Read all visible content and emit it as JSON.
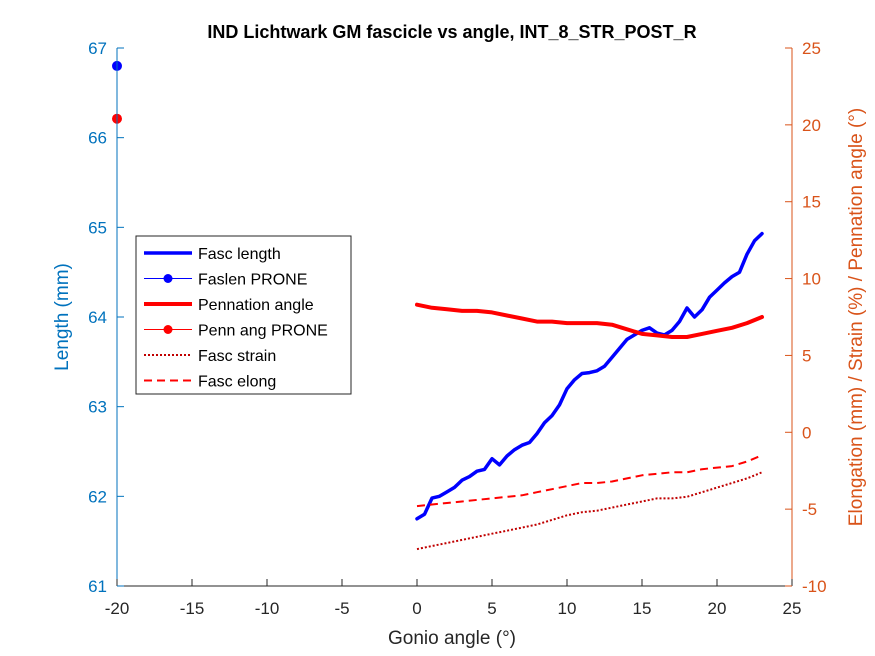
{
  "chart_data": {
    "type": "line",
    "title": "IND Lichtwark GM fascicle vs angle, INT_8_STR_POST_R",
    "xlabel": "Gonio angle (°)",
    "ylabel_left": "Length (mm)",
    "ylabel_right": "Elongation (mm) / Strain (%) / Pennation angle (°)",
    "xlim": [
      -20,
      25
    ],
    "ylim_left": [
      61,
      67
    ],
    "ylim_right": [
      -10,
      25
    ],
    "x_ticks": [
      -20,
      -15,
      -10,
      -5,
      0,
      5,
      10,
      15,
      20,
      25
    ],
    "y_left_ticks": [
      61,
      62,
      63,
      64,
      65,
      66,
      67
    ],
    "y_right_ticks": [
      -10,
      -5,
      0,
      5,
      10,
      15,
      20,
      25
    ],
    "grid": false,
    "legend_position": "middle-left",
    "colors": {
      "left_axis": "#0072BD",
      "right_axis": "#D95319",
      "fasc_length": "#0000FF",
      "pennation": "#FF0000",
      "strain": "#C00000",
      "elong": "#FF0000"
    },
    "series": [
      {
        "name": "Fasc length",
        "axis": "left",
        "style": "solid-thick",
        "x": [
          0,
          0.5,
          1,
          1.5,
          2,
          2.5,
          3,
          3.5,
          4,
          4.5,
          5,
          5.5,
          6,
          6.5,
          7,
          7.5,
          8,
          8.5,
          9,
          9.5,
          10,
          10.5,
          11,
          11.5,
          12,
          12.5,
          13,
          13.5,
          14,
          14.5,
          15,
          15.5,
          16,
          16.5,
          17,
          17.5,
          18,
          18.5,
          19,
          19.5,
          20,
          20.5,
          21,
          21.5,
          22,
          22.5,
          23
        ],
        "values": [
          61.75,
          61.8,
          61.98,
          62.0,
          62.05,
          62.1,
          62.18,
          62.22,
          62.28,
          62.3,
          62.42,
          62.35,
          62.45,
          62.52,
          62.57,
          62.6,
          62.7,
          62.82,
          62.9,
          63.02,
          63.2,
          63.3,
          63.37,
          63.38,
          63.4,
          63.45,
          63.55,
          63.65,
          63.75,
          63.8,
          63.85,
          63.88,
          63.82,
          63.8,
          63.85,
          63.95,
          64.1,
          64.0,
          64.08,
          64.22,
          64.3,
          64.38,
          64.45,
          64.5,
          64.7,
          64.85,
          64.93
        ]
      },
      {
        "name": "Faslen PRONE",
        "axis": "left",
        "style": "marker",
        "x": [
          -20
        ],
        "values": [
          66.8
        ]
      },
      {
        "name": "Pennation angle",
        "axis": "right",
        "style": "solid-thick",
        "x": [
          0,
          1,
          2,
          3,
          4,
          5,
          6,
          7,
          8,
          9,
          10,
          11,
          12,
          13,
          14,
          15,
          16,
          17,
          18,
          19,
          20,
          21,
          22,
          23
        ],
        "values": [
          8.3,
          8.1,
          8.0,
          7.9,
          7.9,
          7.8,
          7.6,
          7.4,
          7.2,
          7.2,
          7.1,
          7.1,
          7.1,
          7.0,
          6.7,
          6.4,
          6.3,
          6.2,
          6.2,
          6.4,
          6.6,
          6.8,
          7.1,
          7.5
        ]
      },
      {
        "name": "Penn ang PRONE",
        "axis": "right",
        "style": "marker",
        "x": [
          -20
        ],
        "values": [
          20.4
        ]
      },
      {
        "name": "Fasc strain",
        "axis": "right",
        "style": "dotted",
        "x": [
          0,
          1,
          2,
          3,
          4,
          5,
          6,
          7,
          8,
          9,
          10,
          11,
          12,
          13,
          14,
          15,
          16,
          17,
          18,
          19,
          20,
          21,
          22,
          23
        ],
        "values": [
          -7.6,
          -7.4,
          -7.2,
          -7.0,
          -6.8,
          -6.6,
          -6.4,
          -6.2,
          -6.0,
          -5.7,
          -5.4,
          -5.2,
          -5.1,
          -4.9,
          -4.7,
          -4.5,
          -4.3,
          -4.3,
          -4.2,
          -3.9,
          -3.6,
          -3.3,
          -3.0,
          -2.6
        ]
      },
      {
        "name": "Fasc elong",
        "axis": "right",
        "style": "dashed",
        "x": [
          0,
          1,
          2,
          3,
          4,
          5,
          6,
          7,
          8,
          9,
          10,
          11,
          12,
          13,
          14,
          15,
          16,
          17,
          18,
          19,
          20,
          21,
          22,
          23
        ],
        "values": [
          -4.8,
          -4.7,
          -4.6,
          -4.5,
          -4.4,
          -4.3,
          -4.2,
          -4.1,
          -3.9,
          -3.7,
          -3.5,
          -3.3,
          -3.3,
          -3.2,
          -3.0,
          -2.8,
          -2.7,
          -2.6,
          -2.6,
          -2.4,
          -2.3,
          -2.2,
          -1.9,
          -1.5
        ]
      }
    ]
  }
}
